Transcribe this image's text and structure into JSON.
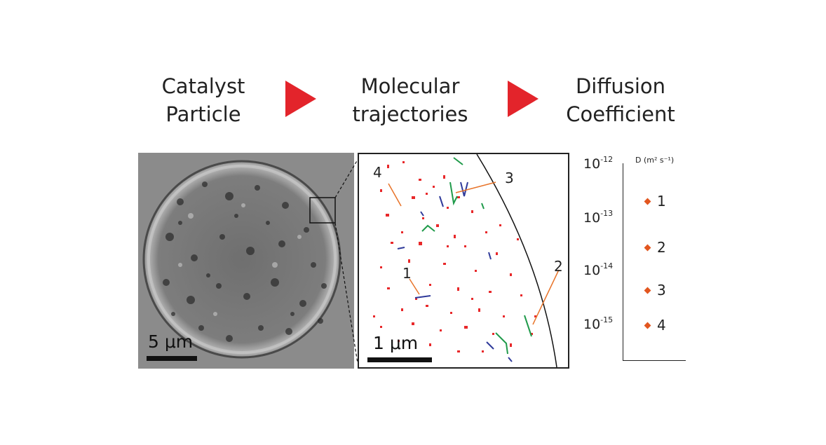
{
  "headings": {
    "particle": "Catalyst\nParticle",
    "trajectories": "Molecular\ntrajectories",
    "diffusion": "Diffusion\nCoefficient"
  },
  "particle_panel": {
    "scale_label": "5 μm"
  },
  "trajectory_panel": {
    "scale_label": "1 μm",
    "labels": [
      "4",
      "3",
      "1",
      "2"
    ]
  },
  "coefficient_axis": {
    "label": "D (m² s⁻¹)",
    "ticks": [
      {
        "base": "10",
        "exp": "-12"
      },
      {
        "base": "10",
        "exp": "-13"
      },
      {
        "base": "10",
        "exp": "-14"
      },
      {
        "base": "10",
        "exp": "-15"
      }
    ],
    "points": [
      {
        "label": "1"
      },
      {
        "label": "2"
      },
      {
        "label": "3"
      },
      {
        "label": "4"
      }
    ]
  },
  "colors": {
    "arrow": "#e3242b",
    "trajectory_red": "#e8282a",
    "trajectory_blue": "#2f3a9a",
    "trajectory_green": "#1f9a4a",
    "callout": "#e8742a",
    "marker": "#e2561f"
  }
}
